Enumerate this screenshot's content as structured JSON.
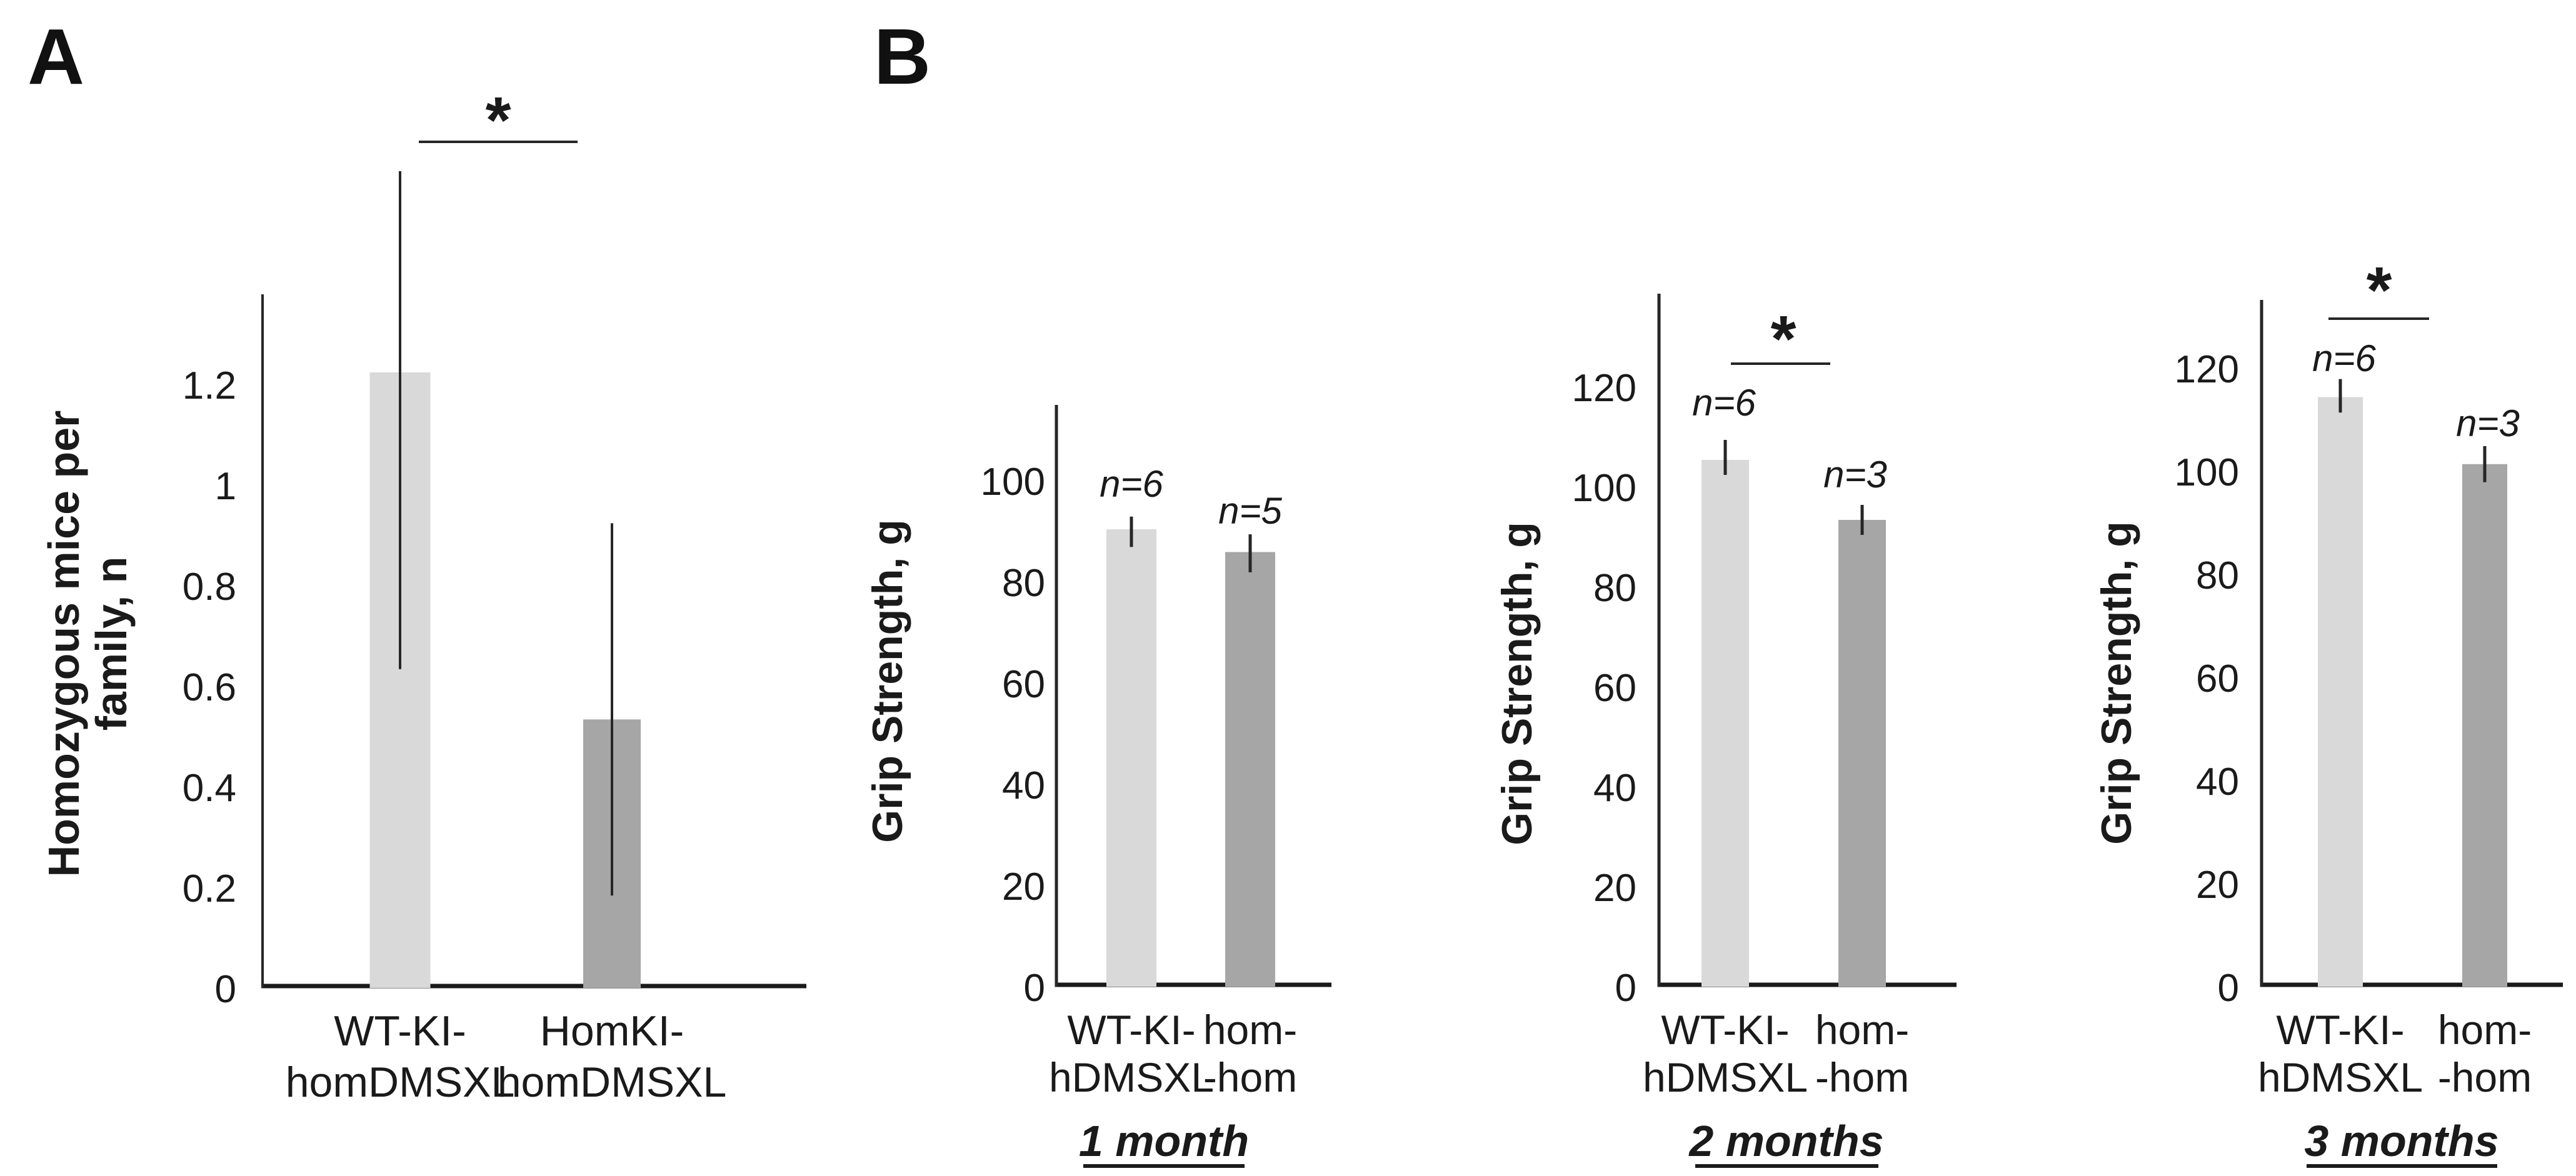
{
  "figure": {
    "panel_a_label": "A",
    "panel_b_label": "B"
  },
  "colors": {
    "bar_light": "#d9d9d9",
    "bar_dark": "#a6a6a6",
    "axis": "#262626",
    "baseline": "#1a1a1a",
    "error_bar": "#262626",
    "panel_a_tick_text": "#767676",
    "text": "#1a1a1a"
  },
  "chart_data": [
    {
      "id": "homozygous-mice-per-family",
      "panel": "A",
      "type": "bar",
      "ylabel_lines": [
        "Homozygous mice per",
        "family, n"
      ],
      "categories": [
        [
          "WT-KI-",
          "homDMSXL"
        ],
        [
          "HomKI-",
          "homDMSXL"
        ]
      ],
      "values": [
        1.22,
        0.53
      ],
      "error_low": [
        0.63,
        0.18
      ],
      "error_high": [
        1.62,
        0.92
      ],
      "n_labels": null,
      "bar_colors": [
        "#d9d9d9",
        "#a6a6a6"
      ],
      "ytick_labels": [
        "0",
        "0.2",
        "0.4",
        "0.6",
        "0.8",
        "1",
        "1.2"
      ],
      "yticks": [
        0,
        0.2,
        0.4,
        0.6,
        0.8,
        1,
        1.2
      ],
      "ylim": [
        0,
        1.38
      ],
      "grid": false,
      "significance": "*",
      "caption": null
    },
    {
      "id": "grip-strength-1-month",
      "panel": "B",
      "type": "bar",
      "ylabel_lines": [
        "Grip Strength, g"
      ],
      "categories": [
        [
          "WT-KI-",
          "hDMSXL"
        ],
        [
          "hom-",
          "-hom"
        ]
      ],
      "values": [
        90,
        85.5
      ],
      "error_low": [
        86.5,
        81.5
      ],
      "error_high": [
        92.5,
        89
      ],
      "n_labels": [
        "n=6",
        "n=5"
      ],
      "bar_colors": [
        "#d9d9d9",
        "#a6a6a6"
      ],
      "ytick_labels": [
        "0",
        "20",
        "40",
        "60",
        "80",
        "100"
      ],
      "yticks": [
        0,
        20,
        40,
        60,
        80,
        100
      ],
      "ylim": [
        0,
        114
      ],
      "grid": false,
      "significance": null,
      "caption": "1 month"
    },
    {
      "id": "grip-strength-2-months",
      "panel": "B",
      "type": "bar",
      "ylabel_lines": [
        "Grip Strength, g"
      ],
      "categories": [
        [
          "WT-KI-",
          "hDMSXL"
        ],
        [
          "hom-",
          "-hom"
        ]
      ],
      "values": [
        105,
        93
      ],
      "error_low": [
        102,
        90
      ],
      "error_high": [
        109,
        96
      ],
      "n_labels": [
        "n=6",
        "n=3"
      ],
      "bar_colors": [
        "#d9d9d9",
        "#a6a6a6"
      ],
      "ytick_labels": [
        "0",
        "20",
        "40",
        "60",
        "80",
        "100",
        "120"
      ],
      "yticks": [
        0,
        20,
        40,
        60,
        80,
        100,
        120
      ],
      "ylim": [
        0,
        138
      ],
      "grid": false,
      "significance": "*",
      "caption": "2 months"
    },
    {
      "id": "grip-strength-3-months",
      "panel": "B",
      "type": "bar",
      "ylabel_lines": [
        "Grip Strength, g"
      ],
      "categories": [
        [
          "WT-KI-",
          "hDMSXL"
        ],
        [
          "hom-",
          "-hom"
        ]
      ],
      "values": [
        114,
        101
      ],
      "error_low": [
        111,
        97.5
      ],
      "error_high": [
        117.5,
        104.5
      ],
      "n_labels": [
        "n=6",
        "n=3"
      ],
      "bar_colors": [
        "#d9d9d9",
        "#a6a6a6"
      ],
      "ytick_labels": [
        "0",
        "20",
        "40",
        "60",
        "80",
        "100",
        "120"
      ],
      "yticks": [
        0,
        20,
        40,
        60,
        80,
        100,
        120
      ],
      "ylim": [
        0,
        133
      ],
      "grid": false,
      "significance": "*",
      "caption": "3 months"
    }
  ]
}
